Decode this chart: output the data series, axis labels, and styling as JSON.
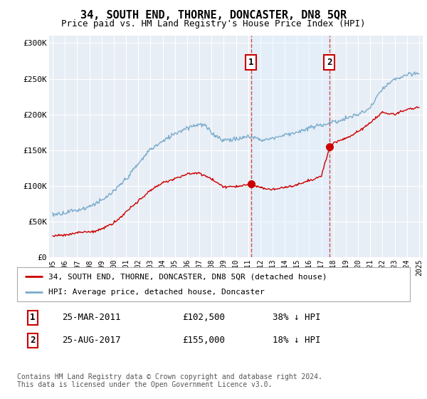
{
  "title": "34, SOUTH END, THORNE, DONCASTER, DN8 5QR",
  "subtitle": "Price paid vs. HM Land Registry's House Price Index (HPI)",
  "ylabel_ticks": [
    "£0",
    "£50K",
    "£100K",
    "£150K",
    "£200K",
    "£250K",
    "£300K"
  ],
  "ytick_vals": [
    0,
    50000,
    100000,
    150000,
    200000,
    250000,
    300000
  ],
  "ylim": [
    0,
    310000
  ],
  "xlim_start": 1994.7,
  "xlim_end": 2025.3,
  "sale1_x": 2011.23,
  "sale1_y": 102500,
  "sale1_label": "1",
  "sale2_x": 2017.65,
  "sale2_y": 155000,
  "sale2_label": "2",
  "red_line_color": "#cc0000",
  "blue_line_color": "#7aabcc",
  "shade_color": "#ddeeff",
  "background_color": "#ffffff",
  "plot_bg_color": "#e8eef5",
  "grid_color": "#ffffff",
  "legend_label_red": "34, SOUTH END, THORNE, DONCASTER, DN8 5QR (detached house)",
  "legend_label_blue": "HPI: Average price, detached house, Doncaster",
  "table_row1": [
    "1",
    "25-MAR-2011",
    "£102,500",
    "38% ↓ HPI"
  ],
  "table_row2": [
    "2",
    "25-AUG-2017",
    "£155,000",
    "18% ↓ HPI"
  ],
  "footer": "Contains HM Land Registry data © Crown copyright and database right 2024.\nThis data is licensed under the Open Government Licence v3.0.",
  "title_fontsize": 11,
  "subtitle_fontsize": 9,
  "tick_fontsize": 8,
  "annotation_fontsize": 9
}
